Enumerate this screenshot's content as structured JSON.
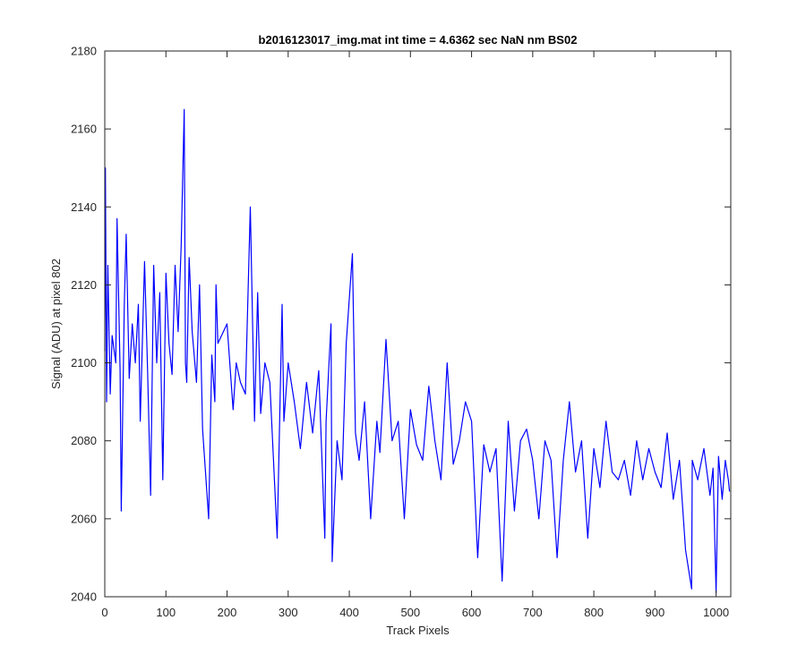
{
  "chart_data": {
    "type": "line",
    "title": "b2016123017_img.mat int time = 4.6362 sec  NaN nm BS02",
    "xlabel": "Track Pixels",
    "ylabel": "Signal (ADU) at pixel 802",
    "xlim": [
      0,
      1024
    ],
    "ylim": [
      2040,
      2180
    ],
    "xticks": [
      0,
      100,
      200,
      300,
      400,
      500,
      600,
      700,
      800,
      900,
      1000
    ],
    "yticks": [
      2040,
      2060,
      2080,
      2100,
      2120,
      2140,
      2160,
      2180
    ],
    "grid": false,
    "legend": "none",
    "series": [
      {
        "color": "#0000ff",
        "x": [
          0,
          1,
          3,
          5,
          9,
          12,
          18,
          20,
          25,
          27,
          32,
          35,
          40,
          45,
          50,
          55,
          58,
          65,
          70,
          75,
          80,
          85,
          90,
          95,
          100,
          105,
          110,
          115,
          120,
          125,
          130,
          132,
          134,
          138,
          143,
          150,
          155,
          160,
          170,
          175,
          180,
          182,
          185,
          200,
          210,
          215,
          222,
          230,
          238,
          245,
          250,
          255,
          262,
          270,
          282,
          290,
          293,
          300,
          310,
          320,
          330,
          340,
          350,
          360,
          362,
          370,
          372,
          380,
          388,
          395,
          405,
          410,
          416,
          425,
          435,
          445,
          450,
          460,
          470,
          480,
          490,
          500,
          510,
          520,
          530,
          540,
          550,
          560,
          570,
          580,
          590,
          600,
          610,
          620,
          630,
          640,
          650,
          660,
          670,
          680,
          690,
          700,
          710,
          720,
          730,
          740,
          750,
          760,
          770,
          780,
          790,
          800,
          810,
          820,
          830,
          840,
          850,
          860,
          870,
          880,
          890,
          900,
          910,
          920,
          930,
          940,
          950,
          960,
          961,
          970,
          980,
          990,
          995,
          1000,
          1004,
          1010,
          1015,
          1020,
          1022
        ],
        "y": [
          2103,
          2150,
          2090,
          2125,
          2092,
          2107,
          2100,
          2137,
          2098,
          2062,
          2115,
          2133,
          2096,
          2110,
          2100,
          2115,
          2085,
          2126,
          2098,
          2066,
          2125,
          2100,
          2118,
          2070,
          2123,
          2105,
          2097,
          2125,
          2108,
          2130,
          2165,
          2100,
          2095,
          2127,
          2108,
          2095,
          2120,
          2083,
          2060,
          2102,
          2090,
          2120,
          2105,
          2110,
          2088,
          2100,
          2095,
          2092,
          2140,
          2085,
          2118,
          2087,
          2100,
          2095,
          2055,
          2115,
          2085,
          2100,
          2090,
          2078,
          2095,
          2082,
          2098,
          2055,
          2085,
          2110,
          2049,
          2080,
          2070,
          2105,
          2128,
          2082,
          2075,
          2090,
          2060,
          2085,
          2077,
          2106,
          2080,
          2085,
          2060,
          2088,
          2079,
          2075,
          2094,
          2080,
          2070,
          2100,
          2074,
          2080,
          2090,
          2085,
          2050,
          2079,
          2072,
          2078,
          2044,
          2085,
          2062,
          2080,
          2083,
          2075,
          2060,
          2080,
          2075,
          2050,
          2075,
          2090,
          2072,
          2080,
          2055,
          2078,
          2068,
          2085,
          2072,
          2070,
          2075,
          2066,
          2080,
          2070,
          2078,
          2072,
          2068,
          2082,
          2065,
          2075,
          2052,
          2042,
          2075,
          2070,
          2078,
          2066,
          2073,
          2041,
          2076,
          2065,
          2075,
          2070,
          2067
        ]
      }
    ]
  }
}
